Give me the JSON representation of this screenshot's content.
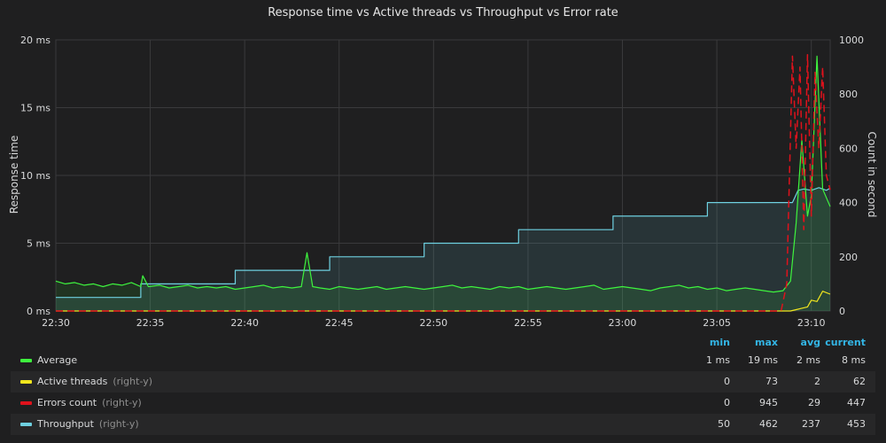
{
  "panel": {
    "title": "Response time vs Active threads vs Throughput vs Error rate"
  },
  "legend": {
    "headers": {
      "min": "min",
      "max": "max",
      "avg": "avg",
      "current": "current"
    },
    "rows": [
      {
        "name": "Average",
        "axis_note": "",
        "color": "#3ef43e",
        "min": "1 ms",
        "max": "19 ms",
        "avg": "2 ms",
        "current": "8 ms"
      },
      {
        "name": "Active threads",
        "axis_note": "(right-y)",
        "color": "#f2e61e",
        "min": "0",
        "max": "73",
        "avg": "2",
        "current": "62"
      },
      {
        "name": "Errors count",
        "axis_note": "(right-y)",
        "color": "#e0121c",
        "min": "0",
        "max": "945",
        "avg": "29",
        "current": "447"
      },
      {
        "name": "Throughput",
        "axis_note": "(right-y)",
        "color": "#6ed0e0",
        "min": "50",
        "max": "462",
        "avg": "237",
        "current": "453"
      }
    ]
  },
  "chart_data": {
    "type": "line",
    "title": "Response time vs Active threads vs Throughput vs Error rate",
    "xlabel": "",
    "ylabel": "Response time",
    "y2label": "Count in second",
    "x_ticks": [
      "22:30",
      "22:35",
      "22:40",
      "22:45",
      "22:50",
      "22:55",
      "23:00",
      "23:05",
      "23:10"
    ],
    "x_range_minutes": [
      0,
      41
    ],
    "y_ticks": [
      "0 ms",
      "5 ms",
      "10 ms",
      "15 ms",
      "20 ms"
    ],
    "ylim": [
      0,
      20
    ],
    "y2_ticks": [
      "0",
      "200",
      "400",
      "600",
      "800",
      "1000"
    ],
    "y2lim": [
      0,
      1000
    ],
    "grid": true,
    "legend_placement": "bottom",
    "series": [
      {
        "name": "Throughput",
        "axis": "right",
        "style": "step-area",
        "color": "#6ed0e0",
        "x": [
          0,
          4.5,
          4.5,
          9.5,
          9.5,
          14.5,
          14.5,
          19.5,
          19.5,
          24.5,
          24.5,
          29.5,
          29.5,
          34.5,
          34.5,
          39.0,
          39.3,
          39.6,
          40.0,
          40.4,
          40.8,
          41.0
        ],
        "values": [
          50,
          50,
          100,
          100,
          150,
          150,
          200,
          200,
          250,
          250,
          300,
          300,
          350,
          350,
          400,
          400,
          445,
          450,
          445,
          455,
          445,
          453
        ]
      },
      {
        "name": "Average",
        "axis": "left",
        "style": "line-area",
        "color": "#3ef43e",
        "x": [
          0,
          0.5,
          1,
          1.5,
          2,
          2.5,
          3,
          3.5,
          4,
          4.5,
          4.6,
          4.9,
          5.5,
          6,
          6.5,
          7,
          7.5,
          8,
          8.5,
          9,
          9.5,
          10,
          10.5,
          11,
          11.5,
          12,
          12.5,
          13,
          13.3,
          13.6,
          14,
          14.5,
          15,
          15.5,
          16,
          16.5,
          17,
          17.5,
          18,
          18.5,
          19,
          19.5,
          20,
          20.5,
          21,
          21.5,
          22,
          22.5,
          23,
          23.5,
          24,
          24.5,
          25,
          25.5,
          26,
          26.5,
          27,
          27.5,
          28,
          28.5,
          29,
          29.5,
          30,
          30.5,
          31,
          31.5,
          32,
          32.5,
          33,
          33.5,
          34,
          34.5,
          35,
          35.5,
          36,
          36.5,
          37,
          37.5,
          38,
          38.5,
          38.9,
          39.2,
          39.5,
          39.8,
          40.0,
          40.3,
          40.6,
          41.0
        ],
        "values": [
          2.2,
          2.0,
          2.1,
          1.9,
          2.0,
          1.8,
          2.0,
          1.9,
          2.1,
          1.8,
          2.6,
          1.8,
          1.9,
          1.7,
          1.8,
          1.9,
          1.7,
          1.8,
          1.7,
          1.8,
          1.6,
          1.7,
          1.8,
          1.9,
          1.7,
          1.8,
          1.7,
          1.8,
          4.3,
          1.8,
          1.7,
          1.6,
          1.8,
          1.7,
          1.6,
          1.7,
          1.8,
          1.6,
          1.7,
          1.8,
          1.7,
          1.6,
          1.7,
          1.8,
          1.9,
          1.7,
          1.8,
          1.7,
          1.6,
          1.8,
          1.7,
          1.8,
          1.6,
          1.7,
          1.8,
          1.7,
          1.6,
          1.7,
          1.8,
          1.9,
          1.6,
          1.7,
          1.8,
          1.7,
          1.6,
          1.5,
          1.7,
          1.8,
          1.9,
          1.7,
          1.8,
          1.6,
          1.7,
          1.5,
          1.6,
          1.7,
          1.6,
          1.5,
          1.4,
          1.5,
          2.2,
          6.5,
          12.6,
          7.0,
          8.5,
          18.8,
          9.0,
          7.7
        ]
      },
      {
        "name": "Active threads",
        "axis": "right",
        "style": "line",
        "color": "#f2e61e",
        "x": [
          0,
          38.5,
          38.9,
          39.2,
          39.5,
          39.8,
          40.0,
          40.3,
          40.6,
          41.0
        ],
        "values": [
          0,
          0,
          0,
          5,
          10,
          15,
          40,
          35,
          73,
          62
        ]
      },
      {
        "name": "Errors count",
        "axis": "right",
        "style": "dashed",
        "color": "#e0121c",
        "x": [
          0,
          38.4,
          38.7,
          39.0,
          39.2,
          39.4,
          39.6,
          39.8,
          40.0,
          40.2,
          40.4,
          40.6,
          40.8,
          41.0
        ],
        "values": [
          0,
          0,
          100,
          940,
          600,
          900,
          300,
          945,
          350,
          880,
          600,
          900,
          500,
          447
        ]
      }
    ]
  }
}
